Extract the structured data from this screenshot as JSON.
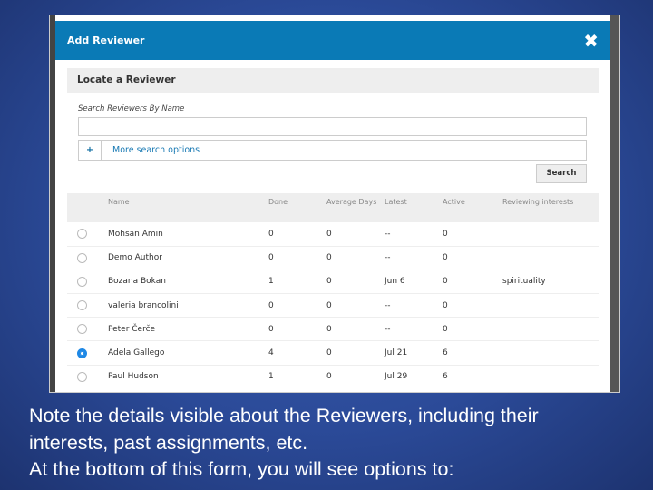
{
  "dialog": {
    "title": "Add Reviewer",
    "close_icon": "close-x-icon",
    "section_title": "Locate a Reviewer",
    "search_label": "Search Reviewers By Name",
    "search_value": "",
    "more_options_icon": "plus-icon",
    "more_options_label": "More search options",
    "search_button": "Search",
    "columns": [
      "Name",
      "Done",
      "Average Days",
      "Latest",
      "Active",
      "Reviewing interests"
    ],
    "rows": [
      {
        "name": "Mohsan Amin",
        "done": "0",
        "avg": "0",
        "latest": "--",
        "active": "0",
        "interests": "",
        "selected": false
      },
      {
        "name": "Demo Author",
        "done": "0",
        "avg": "0",
        "latest": "--",
        "active": "0",
        "interests": "",
        "selected": false
      },
      {
        "name": "Bozana Bokan",
        "done": "1",
        "avg": "0",
        "latest": "Jun 6",
        "active": "0",
        "interests": "spirituality",
        "selected": false
      },
      {
        "name": "valeria brancolini",
        "done": "0",
        "avg": "0",
        "latest": "--",
        "active": "0",
        "interests": "",
        "selected": false
      },
      {
        "name": "Peter Čerče",
        "done": "0",
        "avg": "0",
        "latest": "--",
        "active": "0",
        "interests": "",
        "selected": false
      },
      {
        "name": "Adela Gallego",
        "done": "4",
        "avg": "0",
        "latest": "Jul 21",
        "active": "6",
        "interests": "",
        "selected": true
      },
      {
        "name": "Paul Hudson",
        "done": "1",
        "avg": "0",
        "latest": "Jul 29",
        "active": "6",
        "interests": "",
        "selected": false
      }
    ]
  },
  "caption": {
    "lines": [
      "Note the details visible about the Reviewers, including their",
      "interests, past assignments, etc.",
      "At the bottom of this form, you will see options to:"
    ]
  },
  "colors": {
    "header": "#0a7ab6",
    "slide_bg": "#2b4a98",
    "selected_radio": "#1e88e5"
  }
}
